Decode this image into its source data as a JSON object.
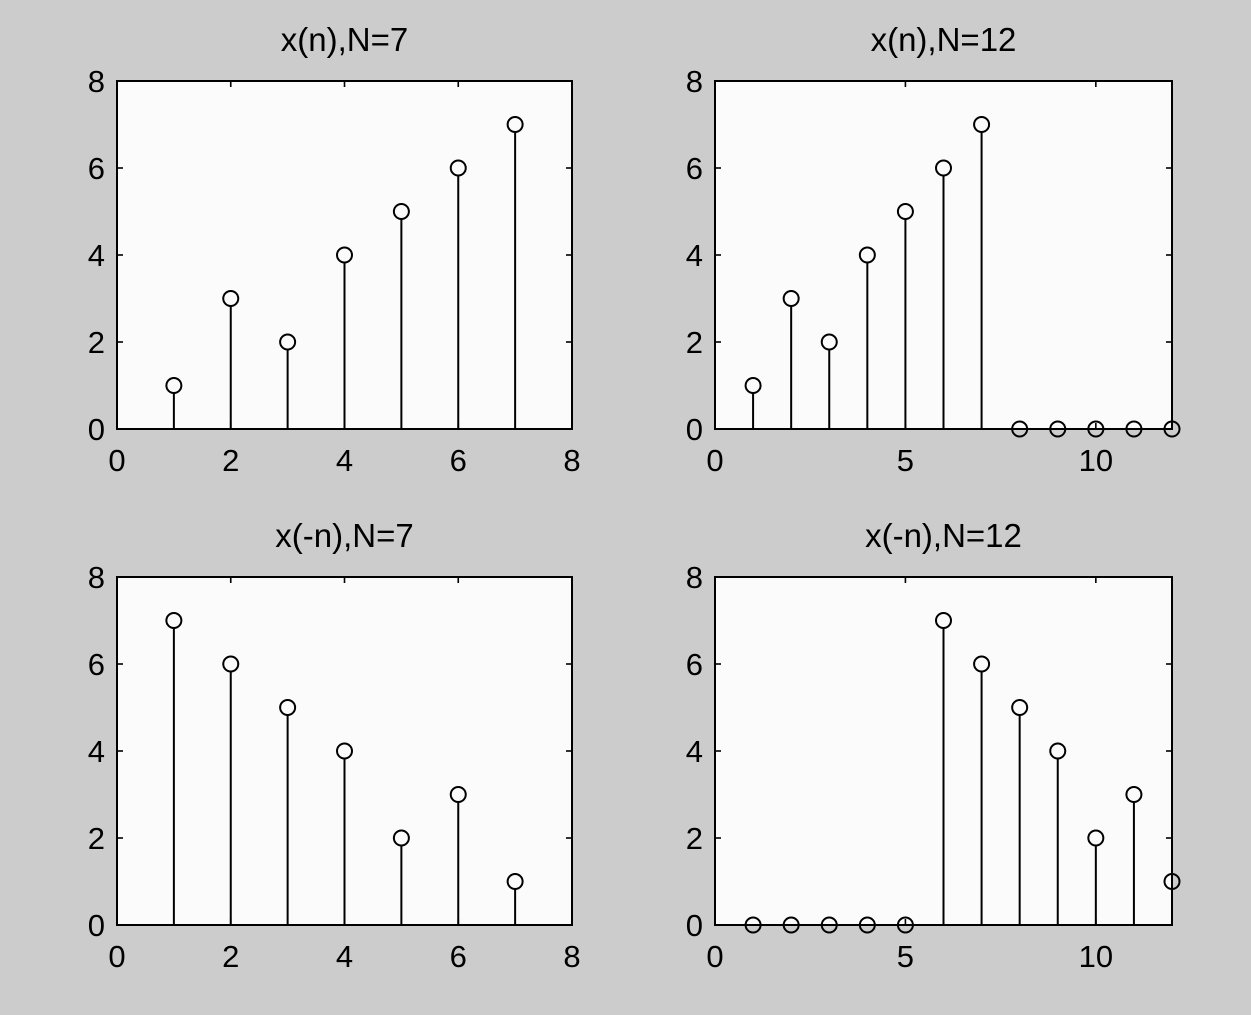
{
  "colors": {
    "figure_background": "#cccccc",
    "axes_background": "#fbfbfb",
    "stem_color": "#000000"
  },
  "chart_data": [
    {
      "type": "stem",
      "title": "x(n),N=7",
      "xlabel": "",
      "ylabel": "",
      "xlim": [
        0,
        8
      ],
      "ylim": [
        0,
        8
      ],
      "xticks": [
        0,
        2,
        4,
        6,
        8
      ],
      "yticks": [
        0,
        2,
        4,
        6,
        8
      ],
      "marker": "circle",
      "grid": false,
      "x": [
        1,
        2,
        3,
        4,
        5,
        6,
        7
      ],
      "values": [
        1,
        3,
        2,
        4,
        5,
        6,
        7
      ]
    },
    {
      "type": "stem",
      "title": "x(n),N=12",
      "xlabel": "",
      "ylabel": "",
      "xlim": [
        0,
        12
      ],
      "ylim": [
        0,
        8
      ],
      "xticks": [
        0,
        5,
        10
      ],
      "yticks": [
        0,
        2,
        4,
        6,
        8
      ],
      "marker": "circle",
      "grid": false,
      "x": [
        1,
        2,
        3,
        4,
        5,
        6,
        7,
        8,
        9,
        10,
        11,
        12
      ],
      "values": [
        1,
        3,
        2,
        4,
        5,
        6,
        7,
        0,
        0,
        0,
        0,
        0
      ]
    },
    {
      "type": "stem",
      "title": "x(-n),N=7",
      "xlabel": "",
      "ylabel": "",
      "xlim": [
        0,
        8
      ],
      "ylim": [
        0,
        8
      ],
      "xticks": [
        0,
        2,
        4,
        6,
        8
      ],
      "yticks": [
        0,
        2,
        4,
        6,
        8
      ],
      "marker": "circle",
      "grid": false,
      "x": [
        1,
        2,
        3,
        4,
        5,
        6,
        7
      ],
      "values": [
        7,
        6,
        5,
        4,
        2,
        3,
        1
      ]
    },
    {
      "type": "stem",
      "title": "x(-n),N=12",
      "xlabel": "",
      "ylabel": "",
      "xlim": [
        0,
        12
      ],
      "ylim": [
        0,
        8
      ],
      "xticks": [
        0,
        5,
        10
      ],
      "yticks": [
        0,
        2,
        4,
        6,
        8
      ],
      "marker": "circle",
      "grid": false,
      "x": [
        1,
        2,
        3,
        4,
        5,
        6,
        7,
        8,
        9,
        10,
        11,
        12
      ],
      "values": [
        0,
        0,
        0,
        0,
        0,
        7,
        6,
        5,
        4,
        2,
        3,
        1
      ]
    }
  ]
}
